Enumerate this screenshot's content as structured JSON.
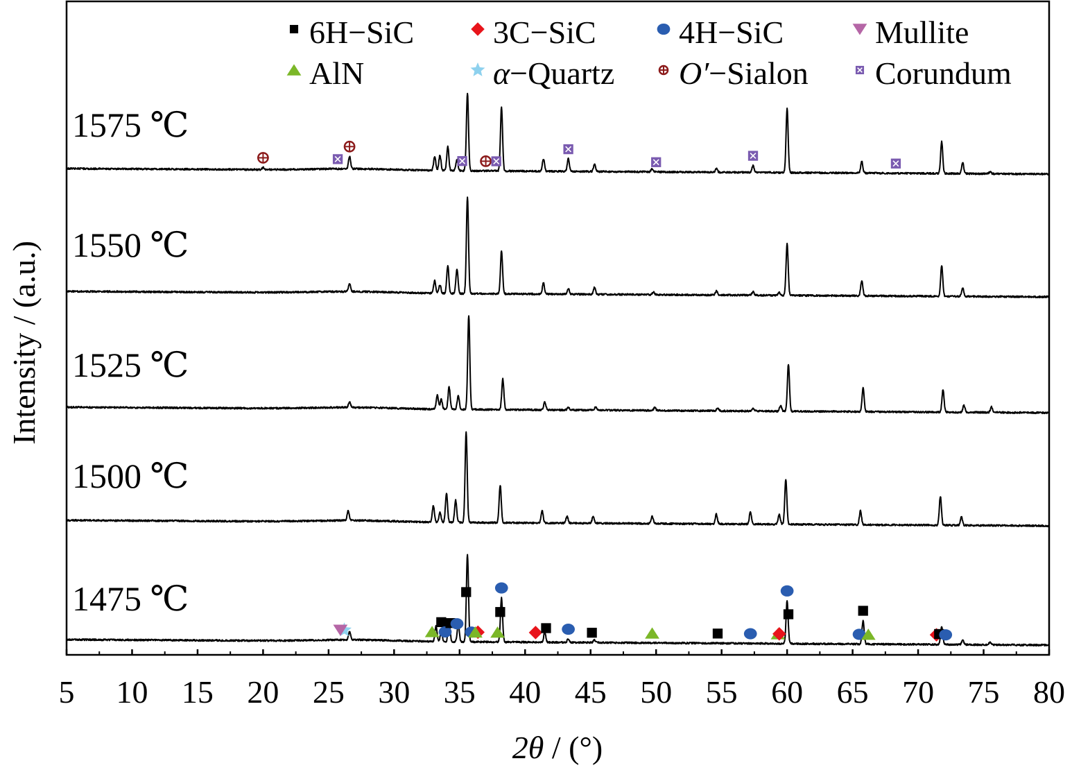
{
  "chart_data": {
    "type": "line",
    "xlabel_sym": "2θ",
    "xlabel_rest": " / (°)",
    "ylabel": "Intensity / (a.u.)",
    "xlim": [
      5,
      80
    ],
    "xticks": [
      5,
      10,
      15,
      20,
      25,
      30,
      35,
      40,
      45,
      50,
      55,
      60,
      65,
      70,
      75,
      80
    ],
    "grid": false,
    "legend_position": "top",
    "legend": [
      {
        "label_pre": "",
        "label_it": "",
        "label": "6H−SiC",
        "symbol": "square",
        "color": "#000000"
      },
      {
        "label_pre": "",
        "label_it": "",
        "label": "3C−SiC",
        "symbol": "diamond",
        "color": "#e8141b"
      },
      {
        "label_pre": "",
        "label_it": "",
        "label": "4H−SiC",
        "symbol": "circle",
        "color": "#2a5db0"
      },
      {
        "label_pre": "",
        "label_it": "",
        "label": "Mullite",
        "symbol": "triangle-down",
        "color": "#b566a6"
      },
      {
        "label_pre": "",
        "label_it": "",
        "label": "AlN",
        "symbol": "triangle-up",
        "color": "#7bb728"
      },
      {
        "label_pre": "",
        "label_it": "α",
        "label": "−Quartz",
        "symbol": "star",
        "color": "#8ed1ee"
      },
      {
        "label_pre": "",
        "label_it": "O′",
        "label": "−Sialon",
        "symbol": "circled-plus",
        "color": "#8b1a1a"
      },
      {
        "label_pre": "",
        "label_it": "",
        "label": "Corundum",
        "symbol": "boxed-x",
        "color": "#7a5bb0"
      }
    ],
    "series": [
      {
        "name": "1575 ℃",
        "peaks": [
          [
            20.0,
            3
          ],
          [
            26.6,
            18
          ],
          [
            33.1,
            20
          ],
          [
            33.5,
            22
          ],
          [
            34.1,
            35
          ],
          [
            34.8,
            16
          ],
          [
            35.6,
            112
          ],
          [
            38.2,
            92
          ],
          [
            41.4,
            18
          ],
          [
            43.3,
            18
          ],
          [
            45.3,
            10
          ],
          [
            49.7,
            4
          ],
          [
            54.6,
            5
          ],
          [
            57.4,
            10
          ],
          [
            60.0,
            92
          ],
          [
            65.7,
            17
          ],
          [
            71.8,
            46
          ],
          [
            73.4,
            16
          ],
          [
            75.5,
            3
          ]
        ],
        "markers": [
          [
            20.0,
            "circled-plus"
          ],
          [
            26.6,
            "circled-plus"
          ],
          [
            25.7,
            "boxed-x"
          ],
          [
            35.2,
            "boxed-x"
          ],
          [
            37.0,
            "circled-plus"
          ],
          [
            37.8,
            "boxed-x"
          ],
          [
            43.3,
            "boxed-x"
          ],
          [
            50.0,
            "boxed-x"
          ],
          [
            57.4,
            "boxed-x"
          ],
          [
            68.3,
            "boxed-x"
          ]
        ]
      },
      {
        "name": "1550 ℃",
        "peaks": [
          [
            26.6,
            12
          ],
          [
            33.1,
            18
          ],
          [
            33.5,
            12
          ],
          [
            34.1,
            40
          ],
          [
            34.8,
            36
          ],
          [
            35.6,
            140
          ],
          [
            38.2,
            62
          ],
          [
            41.4,
            16
          ],
          [
            43.3,
            8
          ],
          [
            45.3,
            10
          ],
          [
            49.8,
            4
          ],
          [
            54.6,
            6
          ],
          [
            57.4,
            5
          ],
          [
            59.4,
            4
          ],
          [
            60.0,
            75
          ],
          [
            65.7,
            22
          ],
          [
            71.8,
            44
          ],
          [
            73.4,
            12
          ]
        ],
        "markers": []
      },
      {
        "name": "1525 ℃",
        "peaks": [
          [
            26.6,
            8
          ],
          [
            33.3,
            20
          ],
          [
            33.6,
            14
          ],
          [
            34.2,
            32
          ],
          [
            34.9,
            20
          ],
          [
            35.7,
            136
          ],
          [
            38.3,
            44
          ],
          [
            41.5,
            12
          ],
          [
            43.3,
            4
          ],
          [
            45.4,
            5
          ],
          [
            49.9,
            4
          ],
          [
            54.7,
            4
          ],
          [
            57.4,
            4
          ],
          [
            59.5,
            8
          ],
          [
            60.1,
            68
          ],
          [
            65.8,
            34
          ],
          [
            71.9,
            32
          ],
          [
            73.5,
            10
          ],
          [
            75.6,
            8
          ]
        ],
        "markers": []
      },
      {
        "name": "1500 ℃",
        "peaks": [
          [
            26.5,
            14
          ],
          [
            33.0,
            24
          ],
          [
            33.5,
            14
          ],
          [
            34.0,
            42
          ],
          [
            34.7,
            32
          ],
          [
            35.5,
            130
          ],
          [
            38.1,
            54
          ],
          [
            41.3,
            18
          ],
          [
            43.2,
            10
          ],
          [
            45.2,
            10
          ],
          [
            49.7,
            10
          ],
          [
            54.6,
            14
          ],
          [
            57.2,
            18
          ],
          [
            59.4,
            14
          ],
          [
            59.9,
            64
          ],
          [
            65.6,
            20
          ],
          [
            71.7,
            42
          ],
          [
            73.3,
            12
          ]
        ],
        "markers": []
      },
      {
        "name": "1475 ℃",
        "peaks": [
          [
            26.6,
            12
          ],
          [
            33.2,
            22
          ],
          [
            33.6,
            14
          ],
          [
            34.2,
            28
          ],
          [
            34.9,
            26
          ],
          [
            35.6,
            126
          ],
          [
            38.2,
            64
          ],
          [
            41.5,
            14
          ],
          [
            43.3,
            5
          ],
          [
            45.3,
            4
          ],
          [
            60.0,
            62
          ],
          [
            65.8,
            34
          ],
          [
            71.8,
            26
          ],
          [
            73.4,
            6
          ],
          [
            75.5,
            4
          ]
        ],
        "markers": [
          [
            26.2,
            "star"
          ],
          [
            25.9,
            "triangle-down"
          ],
          [
            32.9,
            "triangle-up"
          ],
          [
            33.6,
            "square"
          ],
          [
            33.9,
            "circle"
          ],
          [
            34.3,
            "square"
          ],
          [
            34.8,
            "circle"
          ],
          [
            35.5,
            "square"
          ],
          [
            35.9,
            "circle"
          ],
          [
            36.4,
            "diamond"
          ],
          [
            36.2,
            "triangle-up"
          ],
          [
            37.9,
            "triangle-up"
          ],
          [
            38.1,
            "square"
          ],
          [
            38.2,
            "circle"
          ],
          [
            40.8,
            "diamond"
          ],
          [
            41.6,
            "square"
          ],
          [
            43.3,
            "circle"
          ],
          [
            45.1,
            "square"
          ],
          [
            49.7,
            "triangle-up"
          ],
          [
            54.7,
            "square"
          ],
          [
            57.2,
            "circle"
          ],
          [
            59.3,
            "triangle-up"
          ],
          [
            59.4,
            "diamond"
          ],
          [
            60.1,
            "square"
          ],
          [
            60.0,
            "circle"
          ],
          [
            65.5,
            "circle"
          ],
          [
            65.8,
            "square"
          ],
          [
            66.2,
            "triangle-up"
          ],
          [
            71.4,
            "diamond"
          ],
          [
            71.6,
            "square"
          ],
          [
            72.1,
            "circle"
          ]
        ]
      }
    ]
  }
}
